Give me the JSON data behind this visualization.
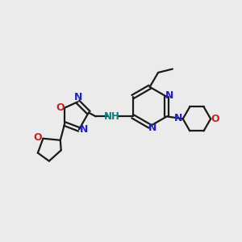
{
  "bg_color": "#ebebeb",
  "bond_color": "#1a1a1a",
  "N_color": "#2020cc",
  "O_color": "#cc2020",
  "NH_color": "#008080",
  "line_width": 1.6,
  "figsize": [
    3.0,
    3.0
  ],
  "dpi": 100,
  "xlim": [
    0,
    10
  ],
  "ylim": [
    0,
    10
  ]
}
